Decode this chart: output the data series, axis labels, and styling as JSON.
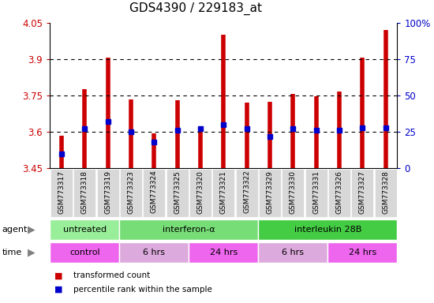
{
  "title": "GDS4390 / 229183_at",
  "samples": [
    "GSM773317",
    "GSM773318",
    "GSM773319",
    "GSM773323",
    "GSM773324",
    "GSM773325",
    "GSM773320",
    "GSM773321",
    "GSM773322",
    "GSM773329",
    "GSM773330",
    "GSM773331",
    "GSM773326",
    "GSM773327",
    "GSM773328"
  ],
  "transformed_count": [
    3.585,
    3.775,
    3.905,
    3.735,
    3.595,
    3.73,
    3.6,
    4.0,
    3.72,
    3.725,
    3.755,
    3.745,
    3.765,
    3.905,
    4.02
  ],
  "percentile_rank": [
    10,
    27,
    32,
    25,
    18,
    26,
    27,
    30,
    27,
    22,
    27,
    26,
    26,
    28,
    28
  ],
  "ylim_left": [
    3.45,
    4.05
  ],
  "ylim_right": [
    0,
    100
  ],
  "yticks_left": [
    3.45,
    3.6,
    3.75,
    3.9,
    4.05
  ],
  "yticks_left_labels": [
    "3.45",
    "3.6",
    "3.75",
    "3.9",
    "4.05"
  ],
  "yticks_right": [
    0,
    25,
    50,
    75,
    100
  ],
  "yticks_right_labels": [
    "0",
    "25",
    "50",
    "75",
    "100%"
  ],
  "hlines": [
    3.6,
    3.75,
    3.9
  ],
  "bar_color": "#cc0000",
  "dot_color": "#0000cc",
  "bar_bottom": 3.45,
  "agent_groups": [
    {
      "label": "untreated",
      "start": 0,
      "end": 3,
      "color": "#99ee99"
    },
    {
      "label": "interferon-α",
      "start": 3,
      "end": 9,
      "color": "#77dd77"
    },
    {
      "label": "interleukin 28B",
      "start": 9,
      "end": 15,
      "color": "#44cc44"
    }
  ],
  "time_groups": [
    {
      "label": "control",
      "start": 0,
      "end": 3,
      "color": "#ee66ee"
    },
    {
      "label": "6 hrs",
      "start": 3,
      "end": 6,
      "color": "#ddaadd"
    },
    {
      "label": "24 hrs",
      "start": 6,
      "end": 9,
      "color": "#ee66ee"
    },
    {
      "label": "6 hrs",
      "start": 9,
      "end": 12,
      "color": "#ddaadd"
    },
    {
      "label": "24 hrs",
      "start": 12,
      "end": 15,
      "color": "#ee66ee"
    }
  ],
  "legend_items": [
    {
      "color": "#cc0000",
      "label": "transformed count"
    },
    {
      "color": "#0000cc",
      "label": "percentile rank within the sample"
    }
  ],
  "title_fontsize": 11,
  "axis_color_left": "#cc0000",
  "axis_color_right": "#0000cc",
  "xtick_bg_color": "#d8d8d8",
  "plot_bg_color": "#ffffff"
}
